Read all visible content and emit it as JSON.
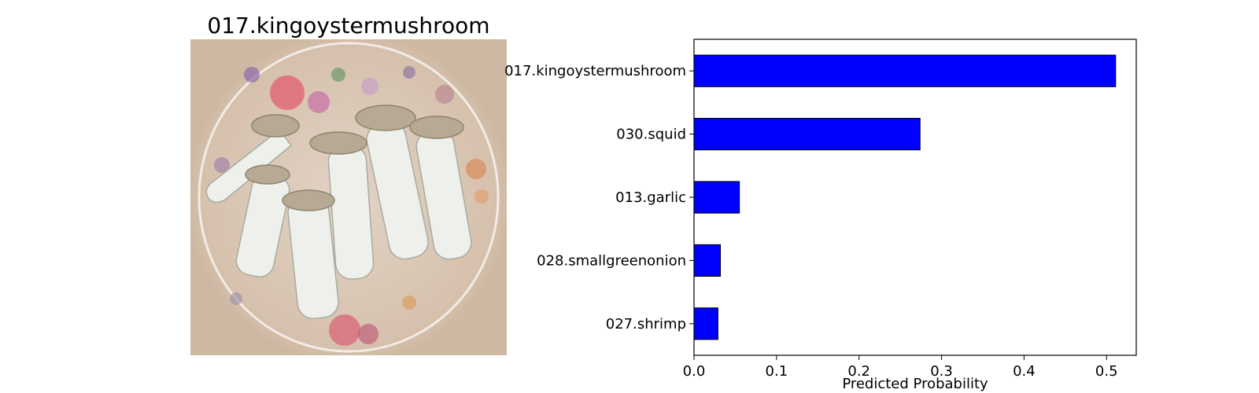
{
  "image_panel": {
    "title": "017.kingoystermushroom",
    "picture": "king oyster mushrooms on a floral plate",
    "plate_color": "#d9c4b0",
    "mushroom_color": "#eef0ec",
    "cap_color": "#b7a993"
  },
  "chart_data": {
    "type": "bar",
    "orientation": "horizontal",
    "title": "",
    "xlabel": "Predicted Probability",
    "ylabel": "",
    "categories": [
      "017.kingoystermushroom",
      "030.squid",
      "013.garlic",
      "028.smallgreenonion",
      "027.shrimp"
    ],
    "values": [
      0.511,
      0.274,
      0.055,
      0.032,
      0.029
    ],
    "xlim": [
      0,
      0.536
    ],
    "xticks": [
      "0.0",
      "0.1",
      "0.2",
      "0.3",
      "0.4",
      "0.5"
    ],
    "xtick_values": [
      0,
      0.1,
      0.2,
      0.3,
      0.4,
      0.5
    ],
    "grid": false,
    "bar_color": "#0000ff",
    "edge_color": "#000000"
  }
}
